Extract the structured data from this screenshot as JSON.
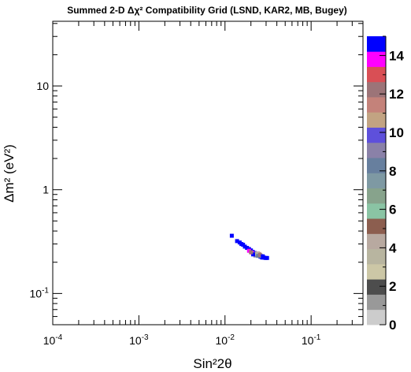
{
  "chart_data": {
    "type": "heatmap",
    "title": "Summed 2-D Δχ² Compatibility Grid (LSND, KAR2, MB, Bugey)",
    "xlabel": "Sin²2θ",
    "ylabel": "Δm² (eV²)",
    "x_scale": "log",
    "y_scale": "log",
    "xlim": [
      0.0001,
      0.4
    ],
    "ylim": [
      0.05,
      42
    ],
    "x_ticks": [
      {
        "value": 0.0001,
        "base": "10",
        "exp": "-4"
      },
      {
        "value": 0.001,
        "base": "10",
        "exp": "-3"
      },
      {
        "value": 0.01,
        "base": "10",
        "exp": "-2"
      },
      {
        "value": 0.1,
        "base": "10",
        "exp": "-1"
      }
    ],
    "y_ticks": [
      {
        "value": 0.1,
        "base": "10",
        "exp": "-1"
      },
      {
        "value": 1,
        "base": "1",
        "exp": ""
      },
      {
        "value": 10,
        "base": "10",
        "exp": ""
      }
    ],
    "colorbar": {
      "min": 0,
      "max": 15,
      "ticks": [
        0,
        2,
        4,
        6,
        8,
        10,
        12,
        14
      ],
      "colors": [
        "#cccccc",
        "#999999",
        "#4d4d4d",
        "#ccc7a6",
        "#b8b5a0",
        "#b8a9a0",
        "#8c5e4f",
        "#8ac4a4",
        "#87a38c",
        "#7e99a3",
        "#677f9e",
        "#8a81a8",
        "#5e50db",
        "#c2a382",
        "#c4827a",
        "#9c7478",
        "#d94f55",
        "#ff00ff",
        "#0000ff"
      ]
    },
    "points": [
      {
        "x": 0.012,
        "y": 0.36,
        "v": 14.5
      },
      {
        "x": 0.0138,
        "y": 0.32,
        "v": 14.5
      },
      {
        "x": 0.0148,
        "y": 0.31,
        "v": 14.5
      },
      {
        "x": 0.0155,
        "y": 0.3,
        "v": 14.5
      },
      {
        "x": 0.0162,
        "y": 0.295,
        "v": 14.5
      },
      {
        "x": 0.017,
        "y": 0.283,
        "v": 14.5
      },
      {
        "x": 0.018,
        "y": 0.275,
        "v": 14.5
      },
      {
        "x": 0.019,
        "y": 0.268,
        "v": 14.5
      },
      {
        "x": 0.02,
        "y": 0.26,
        "v": 14.5
      },
      {
        "x": 0.021,
        "y": 0.252,
        "v": 14.5
      },
      {
        "x": 0.0222,
        "y": 0.245,
        "v": 14.5
      },
      {
        "x": 0.0233,
        "y": 0.238,
        "v": 14.5
      },
      {
        "x": 0.0245,
        "y": 0.232,
        "v": 14.5
      },
      {
        "x": 0.0258,
        "y": 0.226,
        "v": 14.5
      },
      {
        "x": 0.027,
        "y": 0.222,
        "v": 14.5
      },
      {
        "x": 0.0282,
        "y": 0.222,
        "v": 14.5
      },
      {
        "x": 0.0295,
        "y": 0.22,
        "v": 14.5
      },
      {
        "x": 0.0308,
        "y": 0.22,
        "v": 14.5
      },
      {
        "x": 0.019,
        "y": 0.258,
        "v": 13.8
      },
      {
        "x": 0.0205,
        "y": 0.248,
        "v": 13.8
      },
      {
        "x": 0.0218,
        "y": 0.24,
        "v": 11.5
      },
      {
        "x": 0.023,
        "y": 0.235,
        "v": 11.5
      },
      {
        "x": 0.024,
        "y": 0.243,
        "v": 11.5
      },
      {
        "x": 0.025,
        "y": 0.24,
        "v": 11.5
      },
      {
        "x": 0.0225,
        "y": 0.232,
        "v": 9.0
      },
      {
        "x": 0.0262,
        "y": 0.23,
        "v": 9.0
      },
      {
        "x": 0.0245,
        "y": 0.238,
        "v": 4.5
      },
      {
        "x": 0.0235,
        "y": 0.242,
        "v": 3.5
      },
      {
        "x": 0.0242,
        "y": 0.23,
        "v": 8.0
      },
      {
        "x": 0.0255,
        "y": 0.235,
        "v": 12.5
      },
      {
        "x": 0.0275,
        "y": 0.228,
        "v": 14.5
      },
      {
        "x": 0.0212,
        "y": 0.238,
        "v": 14.5
      },
      {
        "x": 0.02,
        "y": 0.25,
        "v": 12.0
      }
    ]
  }
}
